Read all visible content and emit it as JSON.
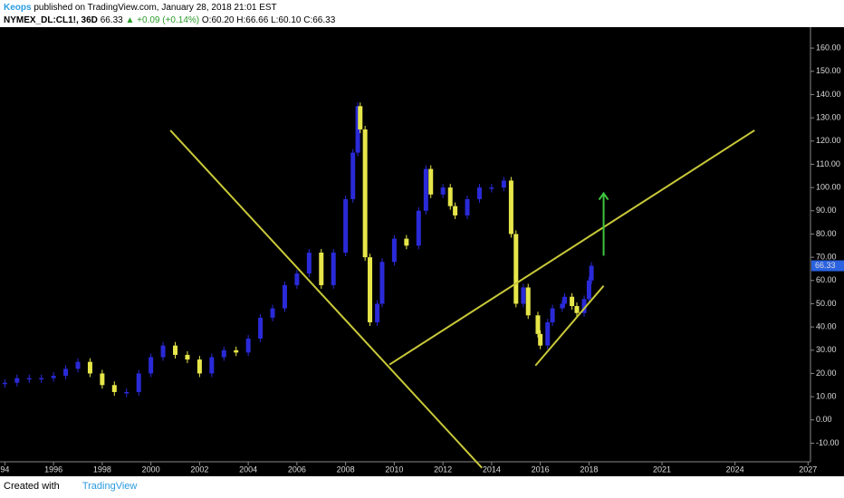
{
  "header": {
    "author": "Keops",
    "published": "published on TradingView.com, January 28, 2018 21:01 EST",
    "symbol": "NYMEX_DL:CL1!, 36D",
    "last": "66.33",
    "change": "▲ +0.09 (+0.14%)",
    "ohlc": [
      "O:60.20",
      "H:66.66",
      "L:60.10",
      "C:66.33"
    ]
  },
  "footer": {
    "created": "Created with",
    "brand": "TradingView"
  },
  "chart_data": {
    "type": "candlestick",
    "x": [
      1994,
      1994.5,
      1995,
      1995.5,
      1996,
      1996.5,
      1997,
      1997.5,
      1998,
      1998.5,
      1999,
      1999.5,
      2000,
      2000.5,
      2001,
      2001.5,
      2002,
      2002.5,
      2003,
      2003.5,
      2004,
      2004.5,
      2005,
      2005.5,
      2006,
      2006.5,
      2007,
      2007.5,
      2008,
      2008.3,
      2008.5,
      2008.6,
      2008.8,
      2009,
      2009.3,
      2009.5,
      2010,
      2010.5,
      2011,
      2011.3,
      2011.5,
      2012,
      2012.3,
      2012.5,
      2013,
      2013.5,
      2014,
      2014.5,
      2014.8,
      2015,
      2015.3,
      2015.5,
      2015.9,
      2016,
      2016.3,
      2016.5,
      2016.9,
      2017,
      2017.3,
      2017.5,
      2017.8,
      2018,
      2018.1
    ],
    "series": [
      {
        "name": "CL1!",
        "up_color": "#2a2ad8",
        "down_color": "#e6e64a",
        "values": [
          16,
          18,
          18,
          18,
          19,
          22,
          25,
          20,
          15,
          12,
          12,
          20,
          27,
          32,
          28,
          26,
          20,
          27,
          30,
          29,
          35,
          44,
          48,
          58,
          63,
          72,
          58,
          72,
          95,
          115,
          135,
          125,
          70,
          42,
          50,
          68,
          78,
          75,
          90,
          108,
          97,
          100,
          92,
          88,
          95,
          100,
          100,
          103,
          80,
          50,
          57,
          45,
          37,
          32,
          42,
          48,
          50,
          53,
          49,
          46,
          52,
          60,
          66.33
        ]
      }
    ],
    "xlim": [
      1993.8,
      2027.1
    ],
    "ylim": [
      -18,
      169
    ],
    "xticks": [
      {
        "value": 1994,
        "label": "94"
      },
      1996,
      1998,
      2000,
      2002,
      2004,
      2006,
      2008,
      2010,
      2012,
      2014,
      2016,
      2018,
      2021,
      2024,
      2027
    ],
    "yticks": [
      {
        "value": 160,
        "label": "160.00"
      },
      {
        "value": 150,
        "label": "150.00"
      },
      {
        "value": 140,
        "label": "140.00"
      },
      {
        "value": 130,
        "label": "130.00"
      },
      {
        "value": 120,
        "label": "120.00"
      },
      {
        "value": 110,
        "label": "110.00"
      },
      {
        "value": 100,
        "label": "100.00"
      },
      {
        "value": 90,
        "label": "90.00"
      },
      {
        "value": 80,
        "label": "80.00"
      },
      {
        "value": 70,
        "label": "70.00"
      },
      {
        "value": 60,
        "label": "60.00"
      },
      {
        "value": 50,
        "label": "50.00"
      },
      {
        "value": 40,
        "label": "40.00"
      },
      {
        "value": 30,
        "label": "30.00"
      },
      {
        "value": 20,
        "label": "20.00"
      },
      {
        "value": 10,
        "label": "10.00"
      },
      {
        "value": 0,
        "label": "0.00"
      },
      {
        "value": -10,
        "label": "-10.00"
      }
    ],
    "drawings": [
      {
        "kind": "line",
        "color": "#c9c93a",
        "x": [
          2000.8,
          2013.6
        ],
        "y": [
          124.6,
          -20.6
        ]
      },
      {
        "kind": "line",
        "color": "#c9c93a",
        "x": [
          2009.8,
          2024.8
        ],
        "y": [
          23.8,
          124.6
        ]
      },
      {
        "kind": "line",
        "color": "#c9c93a",
        "x": [
          2015.8,
          2018.6
        ],
        "y": [
          23.4,
          57.7
        ]
      },
      {
        "kind": "arrow",
        "color": "#3ec43e",
        "x": [
          2018.6,
          2018.6
        ],
        "y": [
          70.7,
          97.5
        ]
      }
    ]
  }
}
